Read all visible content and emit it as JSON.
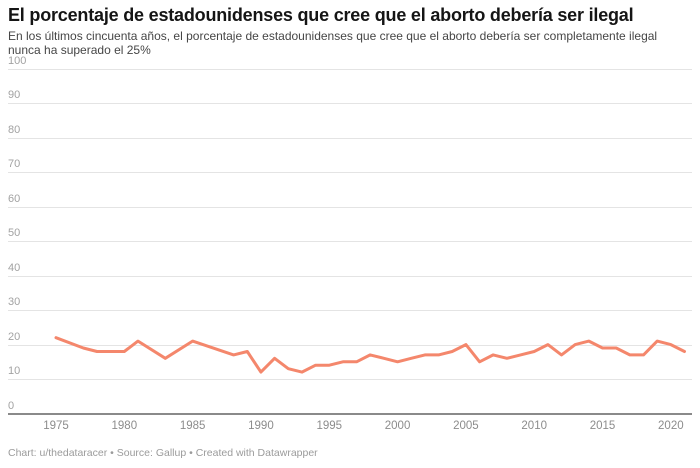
{
  "chart_data": {
    "type": "line",
    "title": "El porcentaje de estadounidenses que cree que el aborto debería ser ilegal",
    "subtitle": "En los últimos cincuenta años, el porcentaje de estadounidenses que cree que el aborto debería ser completamente ilegal nunca ha superado el 25%",
    "xlabel": "",
    "ylabel": "",
    "ylim": [
      0,
      100
    ],
    "xlim": [
      1975,
      2021
    ],
    "grid": true,
    "legend": false,
    "line_color": "#f4876c",
    "yticks": [
      0,
      10,
      20,
      30,
      40,
      50,
      60,
      70,
      80,
      90,
      100
    ],
    "xticks": [
      "1975",
      "1980",
      "1985",
      "1990",
      "1995",
      "2000",
      "2005",
      "2010",
      "2015",
      "2020"
    ],
    "series": [
      {
        "name": "% que cree que el aborto debería ser completamente ilegal",
        "x": [
          1975,
          1977,
          1978,
          1979,
          1980,
          1981,
          1983,
          1985,
          1988,
          1989,
          1990,
          1991,
          1992,
          1993,
          1994,
          1995,
          1996,
          1997,
          1998,
          1999,
          2000,
          2001,
          2002,
          2003,
          2004,
          2005,
          2006,
          2007,
          2008,
          2009,
          2010,
          2011,
          2012,
          2013,
          2014,
          2015,
          2016,
          2017,
          2018,
          2019,
          2020,
          2021
        ],
        "values": [
          22,
          19,
          18,
          18,
          18,
          21,
          16,
          21,
          17,
          18,
          12,
          16,
          13,
          12,
          14,
          14,
          15,
          15,
          17,
          16,
          15,
          16,
          17,
          17,
          18,
          20,
          15,
          17,
          16,
          17,
          18,
          20,
          17,
          20,
          21,
          19,
          19,
          17,
          17,
          21,
          20,
          18
        ]
      }
    ]
  },
  "footer": {
    "credit": "Chart: u/thedataracer • Source: Gallup • Created with Datawrapper"
  }
}
